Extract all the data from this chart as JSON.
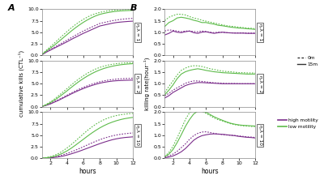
{
  "hours": [
    1,
    1.5,
    2,
    2.5,
    3,
    3.5,
    4,
    4.5,
    5,
    5.5,
    6,
    6.5,
    7,
    7.5,
    8,
    8.5,
    9,
    9.5,
    10,
    10.5,
    11,
    11.5,
    12
  ],
  "panel_A": {
    "eta1": {
      "high_15m": [
        0.1,
        0.65,
        1.1,
        1.55,
        2.0,
        2.45,
        2.9,
        3.4,
        3.85,
        4.3,
        4.75,
        5.15,
        5.55,
        5.95,
        6.35,
        6.55,
        6.75,
        6.95,
        7.1,
        7.2,
        7.28,
        7.35,
        7.4
      ],
      "high_0m": [
        0.15,
        0.75,
        1.25,
        1.75,
        2.25,
        2.75,
        3.25,
        3.78,
        4.28,
        4.78,
        5.25,
        5.68,
        6.1,
        6.5,
        6.9,
        7.1,
        7.3,
        7.5,
        7.65,
        7.78,
        7.88,
        7.95,
        8.0
      ],
      "low_15m": [
        0.2,
        0.9,
        1.55,
        2.2,
        2.95,
        3.7,
        4.45,
        5.2,
        5.9,
        6.55,
        7.15,
        7.68,
        8.15,
        8.55,
        8.88,
        9.1,
        9.28,
        9.43,
        9.55,
        9.63,
        9.68,
        9.72,
        9.75
      ],
      "low_0m": [
        0.25,
        1.05,
        1.85,
        2.65,
        3.48,
        4.3,
        5.1,
        5.88,
        6.58,
        7.22,
        7.8,
        8.3,
        8.72,
        9.05,
        9.3,
        9.5,
        9.65,
        9.76,
        9.84,
        9.89,
        9.93,
        9.95,
        9.97
      ]
    },
    "eta2": {
      "high_15m": [
        0.05,
        0.3,
        0.6,
        1.0,
        1.4,
        1.85,
        2.3,
        2.75,
        3.18,
        3.58,
        3.95,
        4.3,
        4.6,
        4.88,
        5.12,
        5.3,
        5.45,
        5.57,
        5.65,
        5.7,
        5.74,
        5.77,
        5.8
      ],
      "high_0m": [
        0.08,
        0.38,
        0.72,
        1.12,
        1.55,
        2.0,
        2.48,
        2.95,
        3.4,
        3.82,
        4.2,
        4.56,
        4.88,
        5.17,
        5.42,
        5.62,
        5.78,
        5.9,
        6.0,
        6.07,
        6.12,
        6.16,
        6.2
      ],
      "low_15m": [
        0.08,
        0.42,
        0.88,
        1.42,
        2.05,
        2.72,
        3.42,
        4.15,
        4.85,
        5.52,
        6.12,
        6.68,
        7.18,
        7.62,
        8.0,
        8.32,
        8.58,
        8.8,
        8.98,
        9.12,
        9.22,
        9.3,
        9.36
      ],
      "low_0m": [
        0.1,
        0.52,
        1.05,
        1.68,
        2.4,
        3.15,
        3.9,
        4.68,
        5.42,
        6.1,
        6.72,
        7.28,
        7.78,
        8.2,
        8.55,
        8.82,
        9.05,
        9.22,
        9.36,
        9.46,
        9.52,
        9.57,
        9.6
      ]
    },
    "eta10": {
      "high_15m": [
        0.02,
        0.05,
        0.1,
        0.18,
        0.3,
        0.46,
        0.68,
        0.94,
        1.22,
        1.52,
        1.85,
        2.18,
        2.52,
        2.85,
        3.18,
        3.48,
        3.76,
        4.02,
        4.22,
        4.38,
        4.5,
        4.58,
        4.65
      ],
      "high_0m": [
        0.03,
        0.08,
        0.17,
        0.3,
        0.48,
        0.72,
        1.02,
        1.36,
        1.72,
        2.1,
        2.5,
        2.9,
        3.3,
        3.68,
        4.02,
        4.35,
        4.62,
        4.85,
        5.05,
        5.2,
        5.32,
        5.42,
        5.5
      ],
      "low_15m": [
        0.03,
        0.1,
        0.22,
        0.42,
        0.72,
        1.1,
        1.58,
        2.15,
        2.78,
        3.45,
        4.12,
        4.8,
        5.45,
        6.05,
        6.6,
        7.08,
        7.5,
        7.85,
        8.15,
        8.4,
        8.6,
        8.75,
        8.88
      ],
      "low_0m": [
        0.05,
        0.15,
        0.35,
        0.65,
        1.05,
        1.58,
        2.2,
        2.92,
        3.68,
        4.48,
        5.28,
        6.05,
        6.75,
        7.38,
        7.92,
        8.38,
        8.75,
        9.05,
        9.28,
        9.45,
        9.58,
        9.68,
        9.75
      ]
    }
  },
  "panel_B": {
    "eta1": {
      "high_15m": [
        0.88,
        0.95,
        1.05,
        1.0,
        0.98,
        1.02,
        1.05,
        0.98,
        0.95,
        1.0,
        1.02,
        0.98,
        0.95,
        0.98,
        1.0,
        0.98,
        0.97,
        0.96,
        0.96,
        0.96,
        0.95,
        0.95,
        0.95
      ],
      "high_0m": [
        1.05,
        1.1,
        1.08,
        1.05,
        1.02,
        1.05,
        1.05,
        1.03,
        1.02,
        1.05,
        1.03,
        1.0,
        0.98,
        1.0,
        1.0,
        0.98,
        0.97,
        0.97,
        0.97,
        0.97,
        0.96,
        0.96,
        0.96
      ],
      "low_15m": [
        1.25,
        1.42,
        1.5,
        1.62,
        1.65,
        1.62,
        1.58,
        1.52,
        1.48,
        1.42,
        1.42,
        1.38,
        1.35,
        1.3,
        1.28,
        1.25,
        1.22,
        1.2,
        1.18,
        1.17,
        1.15,
        1.14,
        1.12
      ],
      "low_0m": [
        1.5,
        1.65,
        1.72,
        1.78,
        1.78,
        1.75,
        1.68,
        1.62,
        1.58,
        1.52,
        1.48,
        1.44,
        1.4,
        1.36,
        1.32,
        1.28,
        1.26,
        1.24,
        1.22,
        1.2,
        1.18,
        1.17,
        1.15
      ]
    },
    "eta2": {
      "high_15m": [
        0.38,
        0.48,
        0.62,
        0.72,
        0.82,
        0.92,
        0.98,
        1.02,
        1.05,
        1.05,
        1.04,
        1.03,
        1.02,
        1.01,
        1.0,
        1.0,
        1.0,
        1.0,
        1.0,
        1.0,
        1.0,
        1.0,
        1.0
      ],
      "high_0m": [
        0.48,
        0.58,
        0.72,
        0.82,
        0.92,
        1.02,
        1.08,
        1.12,
        1.12,
        1.1,
        1.08,
        1.06,
        1.04,
        1.03,
        1.02,
        1.01,
        1.01,
        1.01,
        1.0,
        1.0,
        1.0,
        1.0,
        1.0
      ],
      "low_15m": [
        0.52,
        0.72,
        0.95,
        1.22,
        1.42,
        1.52,
        1.58,
        1.62,
        1.65,
        1.62,
        1.58,
        1.55,
        1.52,
        1.5,
        1.48,
        1.47,
        1.46,
        1.45,
        1.44,
        1.43,
        1.42,
        1.42,
        1.42
      ],
      "low_0m": [
        0.62,
        0.88,
        1.12,
        1.38,
        1.58,
        1.68,
        1.75,
        1.78,
        1.78,
        1.75,
        1.7,
        1.65,
        1.62,
        1.58,
        1.55,
        1.53,
        1.52,
        1.5,
        1.48,
        1.48,
        1.47,
        1.47,
        1.46
      ]
    },
    "eta10": {
      "high_15m": [
        0.02,
        0.05,
        0.1,
        0.18,
        0.28,
        0.42,
        0.6,
        0.78,
        0.9,
        0.98,
        1.02,
        1.05,
        1.06,
        1.05,
        1.04,
        1.02,
        1.0,
        0.98,
        0.95,
        0.93,
        0.91,
        0.9,
        0.88
      ],
      "high_0m": [
        0.04,
        0.1,
        0.18,
        0.3,
        0.46,
        0.62,
        0.82,
        0.98,
        1.08,
        1.14,
        1.15,
        1.12,
        1.08,
        1.05,
        1.03,
        1.01,
        1.0,
        0.99,
        0.97,
        0.95,
        0.93,
        0.92,
        0.9
      ],
      "low_15m": [
        0.06,
        0.18,
        0.38,
        0.68,
        1.02,
        1.38,
        1.68,
        1.92,
        2.05,
        2.05,
        2.0,
        1.9,
        1.8,
        1.72,
        1.65,
        1.58,
        1.52,
        1.48,
        1.45,
        1.43,
        1.42,
        1.41,
        1.4
      ],
      "low_0m": [
        0.08,
        0.25,
        0.52,
        0.88,
        1.28,
        1.68,
        1.98,
        2.1,
        2.1,
        2.05,
        1.95,
        1.85,
        1.75,
        1.67,
        1.62,
        1.56,
        1.5,
        1.46,
        1.43,
        1.41,
        1.4,
        1.38,
        1.38
      ]
    }
  },
  "high_color": "#7B2D8B",
  "low_color": "#5DBB4A",
  "bg_color": "#FFFFFF",
  "panel_labels": [
    "A",
    "B"
  ],
  "row_labels": [
    "η,λ = 1",
    "η,λ = 2",
    "η,λ = 10"
  ],
  "ylabel_A": "cumulative kills (CTL⁻¹)",
  "ylabel_B": "killing rate(hour⁻¹)",
  "xlabel": "hours",
  "ylim_A": [
    0.0,
    10.0
  ],
  "ylim_B": [
    0.0,
    2.0
  ],
  "yticks_A": [
    0.0,
    2.5,
    5.0,
    7.5,
    10.0
  ],
  "yticks_B": [
    0.0,
    0.5,
    1.0,
    1.5,
    2.0
  ],
  "xticks": [
    2,
    4,
    6,
    8,
    10,
    12
  ]
}
